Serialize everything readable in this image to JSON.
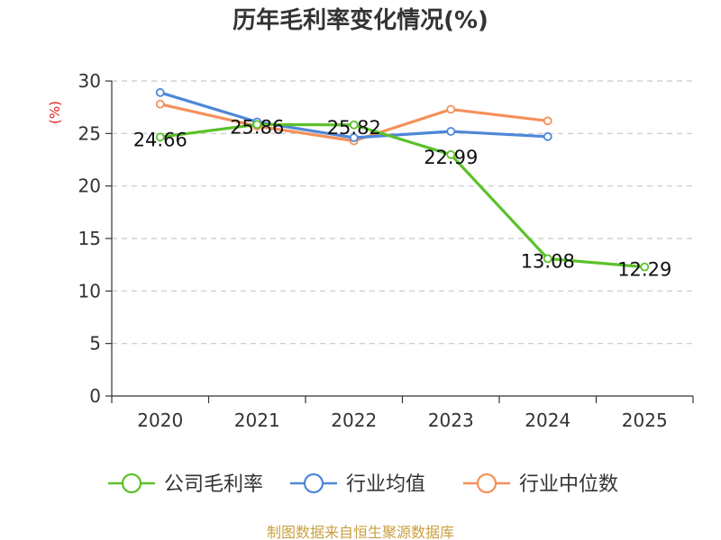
{
  "chart_data": {
    "type": "line",
    "title": "历年毛利率变化情况(%)",
    "ylabel": "(%)",
    "xlabel": "",
    "categories": [
      "2020",
      "2021",
      "2022",
      "2023",
      "2024",
      "2025"
    ],
    "ylim": [
      0,
      30
    ],
    "yticks": [
      0,
      5,
      10,
      15,
      20,
      25,
      30
    ],
    "grid": "horizontal dashed",
    "legend_position": "bottom",
    "series": [
      {
        "name": "公司毛利率",
        "color": "#5cc12a",
        "values": [
          24.66,
          25.86,
          25.82,
          22.99,
          13.08,
          12.29
        ],
        "labels": [
          "24.66",
          "25.86",
          "25.82",
          "22.99",
          "13.08",
          "12.29"
        ]
      },
      {
        "name": "行业均值",
        "color": "#4e87d9",
        "values": [
          28.9,
          26.1,
          24.6,
          25.2,
          24.7,
          null
        ]
      },
      {
        "name": "行业中位数",
        "color": "#f5905a",
        "values": [
          27.8,
          25.7,
          24.3,
          27.3,
          26.2,
          null
        ]
      }
    ]
  },
  "source": "制图数据来自恒生聚源数据库"
}
